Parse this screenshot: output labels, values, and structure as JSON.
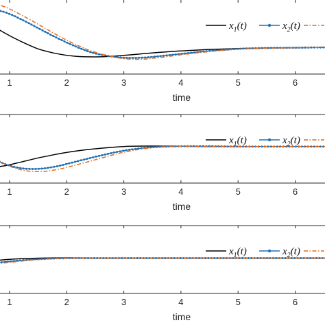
{
  "chart_data": [
    {
      "type": "line",
      "xlabel": "time",
      "x_ticks": [
        "1",
        "2",
        "3",
        "4",
        "5",
        "6"
      ],
      "xlim": [
        0,
        6.55
      ],
      "ylim": [
        -0.9,
        1.6
      ],
      "grid": false,
      "legend_placement": "top-right",
      "series": [
        {
          "name": "x",
          "sub": "1",
          "style": "solid",
          "color": "#000000",
          "x": [
            0,
            0.3,
            0.6,
            0.9,
            1.2,
            1.5,
            1.8,
            2.1,
            2.4,
            2.7,
            3.0,
            3.3,
            3.6,
            4.0,
            4.5,
            5.0,
            5.5,
            6.0,
            6.55
          ],
          "y": [
            1.2,
            1.1,
            0.85,
            0.5,
            0.2,
            -0.05,
            -0.2,
            -0.29,
            -0.32,
            -0.31,
            -0.27,
            -0.22,
            -0.17,
            -0.12,
            -0.07,
            -0.04,
            -0.02,
            -0.01,
            0
          ]
        },
        {
          "name": "x",
          "sub": "2",
          "style": "dot-line",
          "color": "#1f6fb5",
          "x": [
            0,
            0.3,
            0.6,
            0.9,
            1.2,
            1.5,
            1.8,
            2.1,
            2.4,
            2.7,
            3.0,
            3.3,
            3.6,
            4.0,
            4.5,
            5.0,
            5.5,
            6.0,
            6.55
          ],
          "y": [
            1.05,
            1.25,
            1.3,
            1.2,
            0.95,
            0.65,
            0.35,
            0.08,
            -0.15,
            -0.28,
            -0.35,
            -0.35,
            -0.3,
            -0.22,
            -0.12,
            -0.05,
            -0.02,
            -0.01,
            0
          ]
        },
        {
          "name": "",
          "style": "dash-dot",
          "color": "#e06a1b",
          "x": [
            0,
            0.3,
            0.6,
            0.9,
            1.2,
            1.5,
            1.8,
            2.1,
            2.4,
            2.7,
            3.0,
            3.3,
            3.6,
            4.0,
            4.5,
            5.0,
            5.5,
            6.0,
            6.55
          ],
          "y": [
            1.15,
            1.45,
            1.5,
            1.38,
            1.1,
            0.78,
            0.45,
            0.15,
            -0.1,
            -0.27,
            -0.38,
            -0.4,
            -0.35,
            -0.25,
            -0.14,
            -0.06,
            -0.03,
            -0.01,
            0
          ]
        }
      ]
    },
    {
      "type": "line",
      "xlabel": "time",
      "x_ticks": [
        "1",
        "2",
        "3",
        "4",
        "5",
        "6"
      ],
      "xlim": [
        0,
        6.55
      ],
      "ylim": [
        -1.6,
        1.4
      ],
      "grid": false,
      "legend_placement": "top-right",
      "series": [
        {
          "name": "x",
          "sub": "1",
          "style": "solid",
          "color": "#000000",
          "x": [
            0,
            0.2,
            0.4,
            0.6,
            0.9,
            1.2,
            1.5,
            1.8,
            2.1,
            2.5,
            3.0,
            3.5,
            4.0,
            4.5,
            5.0,
            5.5,
            6.0,
            6.55
          ],
          "y": [
            -0.3,
            -0.7,
            -0.88,
            -0.92,
            -0.85,
            -0.68,
            -0.5,
            -0.35,
            -0.22,
            -0.1,
            0,
            0.02,
            0.01,
            0,
            0,
            0,
            0,
            0
          ]
        },
        {
          "name": "x",
          "sub": "2",
          "style": "dot-line",
          "color": "#1f6fb5",
          "x": [
            0,
            0.2,
            0.4,
            0.6,
            0.9,
            1.2,
            1.5,
            1.8,
            2.1,
            2.5,
            3.0,
            3.5,
            4.0,
            4.5,
            5.0,
            5.5,
            6.0,
            6.55
          ],
          "y": [
            0.6,
            0.35,
            0.0,
            -0.35,
            -0.75,
            -0.95,
            -0.98,
            -0.88,
            -0.7,
            -0.45,
            -0.18,
            -0.03,
            0.01,
            0.01,
            0,
            0,
            0,
            0
          ]
        },
        {
          "name": "",
          "style": "dash-dot",
          "color": "#e06a1b",
          "x": [
            0,
            0.2,
            0.4,
            0.6,
            0.9,
            1.2,
            1.5,
            1.8,
            2.1,
            2.5,
            3.0,
            3.5,
            4.0,
            4.5,
            5.0,
            5.5,
            6.0,
            6.55
          ],
          "y": [
            0.75,
            0.5,
            0.1,
            -0.3,
            -0.75,
            -1.02,
            -1.1,
            -1.02,
            -0.85,
            -0.58,
            -0.25,
            -0.05,
            0.01,
            0.01,
            0,
            0,
            0,
            0
          ]
        }
      ]
    },
    {
      "type": "line",
      "xlabel": "time",
      "x_ticks": [
        "1",
        "2",
        "3",
        "4",
        "5",
        "6"
      ],
      "xlim": [
        0,
        6.55
      ],
      "ylim": [
        -1.3,
        1.2
      ],
      "grid": false,
      "legend_placement": "top-right",
      "series": [
        {
          "name": "x",
          "sub": "1",
          "style": "solid",
          "color": "#000000",
          "x": [
            0,
            0.3,
            0.6,
            0.9,
            1.2,
            1.5,
            1.8,
            2.1,
            2.5,
            3.0,
            3.5,
            4.0,
            5.0,
            6.0,
            6.55
          ],
          "y": [
            -0.25,
            -0.2,
            -0.12,
            -0.06,
            -0.02,
            0,
            0.01,
            0.01,
            0,
            0,
            0,
            0,
            0,
            0,
            0
          ]
        },
        {
          "name": "x",
          "sub": "2",
          "style": "dot-line",
          "color": "#1f6fb5",
          "x": [
            0,
            0.3,
            0.6,
            0.9,
            1.2,
            1.5,
            1.8,
            2.1,
            2.5,
            3.0,
            3.5,
            4.0,
            5.0,
            6.0,
            6.55
          ],
          "y": [
            -0.28,
            -0.25,
            -0.2,
            -0.14,
            -0.08,
            -0.04,
            -0.01,
            0,
            0,
            0,
            0,
            0,
            0,
            0,
            0
          ]
        },
        {
          "name": "",
          "style": "dash-dot",
          "color": "#e06a1b",
          "x": [
            0,
            0.3,
            0.6,
            0.9,
            1.2,
            1.5,
            1.8,
            2.1,
            2.5,
            3.0,
            3.5,
            4.0,
            5.0,
            6.0,
            6.55
          ],
          "y": [
            -0.3,
            -0.28,
            -0.24,
            -0.18,
            -0.11,
            -0.05,
            -0.02,
            0,
            0,
            0,
            0,
            0,
            0,
            0,
            0
          ]
        }
      ]
    }
  ]
}
